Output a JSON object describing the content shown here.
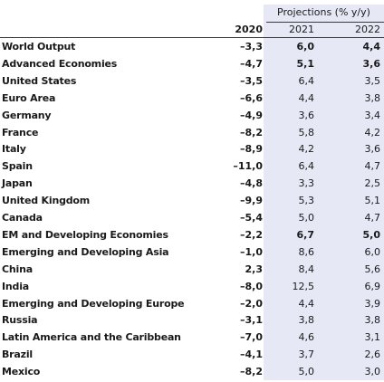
{
  "header": {
    "projections_title": "Projections (% y/y)",
    "col_2020": "2020",
    "col_2021": "2021",
    "col_2022": "2022"
  },
  "rows": [
    {
      "name": "World Output",
      "y2020": "–3,3",
      "y2021": "6,0",
      "y2022": "4,4",
      "bold": true
    },
    {
      "name": "Advanced Economies",
      "y2020": "–4,7",
      "y2021": "5,1",
      "y2022": "3,6",
      "bold": true
    },
    {
      "name": "United States",
      "y2020": "–3,5",
      "y2021": "6,4",
      "y2022": "3,5",
      "bold": false
    },
    {
      "name": "Euro Area",
      "y2020": "–6,6",
      "y2021": "4,4",
      "y2022": "3,8",
      "bold": false
    },
    {
      "name": "Germany",
      "y2020": "–4,9",
      "y2021": "3,6",
      "y2022": "3,4",
      "bold": false
    },
    {
      "name": "France",
      "y2020": "–8,2",
      "y2021": "5,8",
      "y2022": "4,2",
      "bold": false
    },
    {
      "name": "Italy",
      "y2020": "–8,9",
      "y2021": "4,2",
      "y2022": "3,6",
      "bold": false
    },
    {
      "name": "Spain",
      "y2020": "–11,0",
      "y2021": "6,4",
      "y2022": "4,7",
      "bold": false
    },
    {
      "name": "Japan",
      "y2020": "–4,8",
      "y2021": "3,3",
      "y2022": "2,5",
      "bold": false
    },
    {
      "name": "United Kingdom",
      "y2020": "–9,9",
      "y2021": "5,3",
      "y2022": "5,1",
      "bold": false
    },
    {
      "name": "Canada",
      "y2020": "–5,4",
      "y2021": "5,0",
      "y2022": "4,7",
      "bold": false
    },
    {
      "name": "EM and Developing Economies",
      "y2020": "–2,2",
      "y2021": "6,7",
      "y2022": "5,0",
      "bold": true
    },
    {
      "name": "Emerging and Developing Asia",
      "y2020": "–1,0",
      "y2021": "8,6",
      "y2022": "6,0",
      "bold": false
    },
    {
      "name": "China",
      "y2020": "2,3",
      "y2021": "8,4",
      "y2022": "5,6",
      "bold": false
    },
    {
      "name": "India",
      "y2020": "–8,0",
      "y2021": "12,5",
      "y2022": "6,9",
      "bold": false
    },
    {
      "name": "Emerging and Developing Europe",
      "y2020": "–2,0",
      "y2021": "4,4",
      "y2022": "3,9",
      "bold": false
    },
    {
      "name": "Russia",
      "y2020": "–3,1",
      "y2021": "3,8",
      "y2022": "3,8",
      "bold": false
    },
    {
      "name": "Latin America and the Caribbean",
      "y2020": "–7,0",
      "y2021": "4,6",
      "y2022": "3,1",
      "bold": false
    },
    {
      "name": "Brazil",
      "y2020": "–4,1",
      "y2021": "3,7",
      "y2022": "2,6",
      "bold": false
    },
    {
      "name": "Mexico",
      "y2020": "–8,2",
      "y2021": "5,0",
      "y2022": "3,0",
      "bold": false
    }
  ],
  "colors": {
    "projection_band": "#e7e8f5",
    "text": "#1a1a1a"
  }
}
